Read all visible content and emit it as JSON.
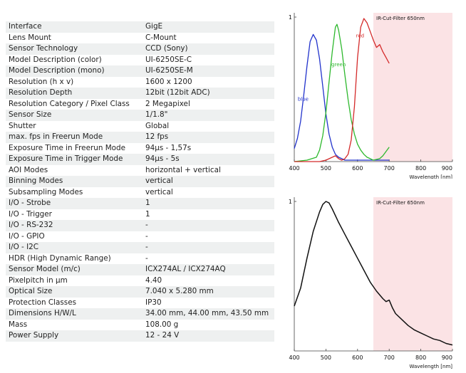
{
  "specs": [
    {
      "label": "Interface",
      "value": "GigE"
    },
    {
      "label": "Lens Mount",
      "value": "C-Mount"
    },
    {
      "label": "Sensor Technology",
      "value": "CCD (Sony)"
    },
    {
      "label": "Model Description (color)",
      "value": "UI-6250SE-C"
    },
    {
      "label": "Model Description (mono)",
      "value": "UI-6250SE-M"
    },
    {
      "label": "Resolution (h x v)",
      "value": "1600 x 1200"
    },
    {
      "label": "Resolution Depth",
      "value": "12bit (12bit ADC)"
    },
    {
      "label": "Resolution Category / Pixel Class",
      "value": "2 Megapixel"
    },
    {
      "label": "Sensor Size",
      "value": "1/1.8\""
    },
    {
      "label": "Shutter",
      "value": "Global"
    },
    {
      "label": "max. fps in Freerun Mode",
      "value": "12 fps"
    },
    {
      "label": "Exposure Time in Freerun Mode",
      "value": "94µs - 1,57s"
    },
    {
      "label": "Exposure Time in Trigger Mode",
      "value": "94µs - 5s"
    },
    {
      "label": "AOI Modes",
      "value": "horizontal + vertical"
    },
    {
      "label": "Binning Modes",
      "value": "vertical"
    },
    {
      "label": "Subsampling Modes",
      "value": "vertical"
    },
    {
      "label": "I/O - Strobe",
      "value": "1"
    },
    {
      "label": "I/O - Trigger",
      "value": "1"
    },
    {
      "label": "I/O - RS-232",
      "value": "-"
    },
    {
      "label": "I/O - GPIO",
      "value": "-"
    },
    {
      "label": "I/O - I2C",
      "value": "-"
    },
    {
      "label": "HDR (High Dynamic Range)",
      "value": "-"
    },
    {
      "label": "Sensor Model (m/c)",
      "value": "ICX274AL / ICX274AQ"
    },
    {
      "label": "Pixelpitch in µm",
      "value": "4.40"
    },
    {
      "label": "Optical Size",
      "value": "7.040 x 5.280 mm"
    },
    {
      "label": "Protection Classes",
      "value": "IP30"
    },
    {
      "label": "Dimensions H/W/L",
      "value": "34.00 mm, 44.00 mm, 43.50 mm"
    },
    {
      "label": "Mass",
      "value": "108.00 g"
    },
    {
      "label": "Power Supply",
      "value": "12 - 24 V"
    }
  ],
  "colors": {
    "blue": "#2233cc",
    "green": "#2db82d",
    "red": "#d42a2a",
    "mono": "#111111",
    "filter_band": "#fbe3e5"
  },
  "chart_data": [
    {
      "type": "line",
      "title": "",
      "xlabel": "Wavelength [nm]",
      "ylabel": "",
      "xlim": [
        400,
        900
      ],
      "ylim": [
        0,
        1
      ],
      "x_ticks": [
        "400",
        "500",
        "600",
        "700",
        "800",
        "900"
      ],
      "y_ticks": [
        "1"
      ],
      "annotation": "IR-Cut-Filter 650nm",
      "filter_cutoff_nm": 650,
      "series": [
        {
          "name": "blue",
          "color": "blue",
          "x": [
            400,
            410,
            420,
            430,
            440,
            450,
            460,
            470,
            480,
            490,
            500,
            510,
            520,
            530,
            540,
            550,
            560,
            580,
            600,
            620,
            650,
            700
          ],
          "y": [
            0.09,
            0.16,
            0.28,
            0.46,
            0.66,
            0.83,
            0.88,
            0.84,
            0.71,
            0.52,
            0.33,
            0.19,
            0.1,
            0.05,
            0.03,
            0.02,
            0.01,
            0.01,
            0.01,
            0.01,
            0.01,
            0.01
          ]
        },
        {
          "name": "green",
          "color": "green",
          "x": [
            400,
            440,
            470,
            480,
            490,
            500,
            510,
            520,
            530,
            535,
            540,
            550,
            560,
            570,
            580,
            590,
            600,
            610,
            620,
            630,
            640,
            650,
            670,
            680,
            690,
            700
          ],
          "y": [
            0.0,
            0.01,
            0.03,
            0.08,
            0.18,
            0.34,
            0.55,
            0.76,
            0.93,
            0.95,
            0.91,
            0.78,
            0.6,
            0.43,
            0.29,
            0.19,
            0.12,
            0.08,
            0.05,
            0.03,
            0.02,
            0.01,
            0.02,
            0.04,
            0.07,
            0.1
          ]
        },
        {
          "name": "red",
          "color": "red",
          "x": [
            400,
            480,
            500,
            520,
            530,
            540,
            550,
            560,
            570,
            580,
            590,
            600,
            610,
            620,
            630,
            640,
            650,
            660,
            670,
            680,
            690,
            700
          ],
          "y": [
            0.0,
            0.0,
            0.01,
            0.03,
            0.04,
            0.02,
            0.01,
            0.02,
            0.05,
            0.15,
            0.38,
            0.72,
            0.93,
            0.99,
            0.96,
            0.9,
            0.84,
            0.79,
            0.81,
            0.76,
            0.72,
            0.68
          ]
        }
      ]
    },
    {
      "type": "line",
      "title": "",
      "xlabel": "Wavelength [nm]",
      "ylabel": "",
      "xlim": [
        400,
        900
      ],
      "ylim": [
        0,
        1
      ],
      "x_ticks": [
        "400",
        "500",
        "600",
        "700",
        "800",
        "900"
      ],
      "y_ticks": [
        "1"
      ],
      "annotation": "IR-Cut-Filter 650nm",
      "filter_cutoff_nm": 650,
      "series": [
        {
          "name": "",
          "color": "mono",
          "x": [
            400,
            420,
            440,
            460,
            480,
            490,
            500,
            510,
            520,
            540,
            560,
            580,
            600,
            620,
            640,
            660,
            680,
            690,
            700,
            710,
            720,
            740,
            760,
            780,
            800,
            820,
            840,
            860,
            880,
            900
          ],
          "y": [
            0.3,
            0.42,
            0.62,
            0.8,
            0.93,
            0.98,
            1.0,
            0.99,
            0.95,
            0.86,
            0.78,
            0.7,
            0.62,
            0.54,
            0.46,
            0.4,
            0.35,
            0.33,
            0.34,
            0.29,
            0.25,
            0.21,
            0.17,
            0.14,
            0.12,
            0.1,
            0.08,
            0.07,
            0.05,
            0.04
          ]
        }
      ]
    }
  ]
}
